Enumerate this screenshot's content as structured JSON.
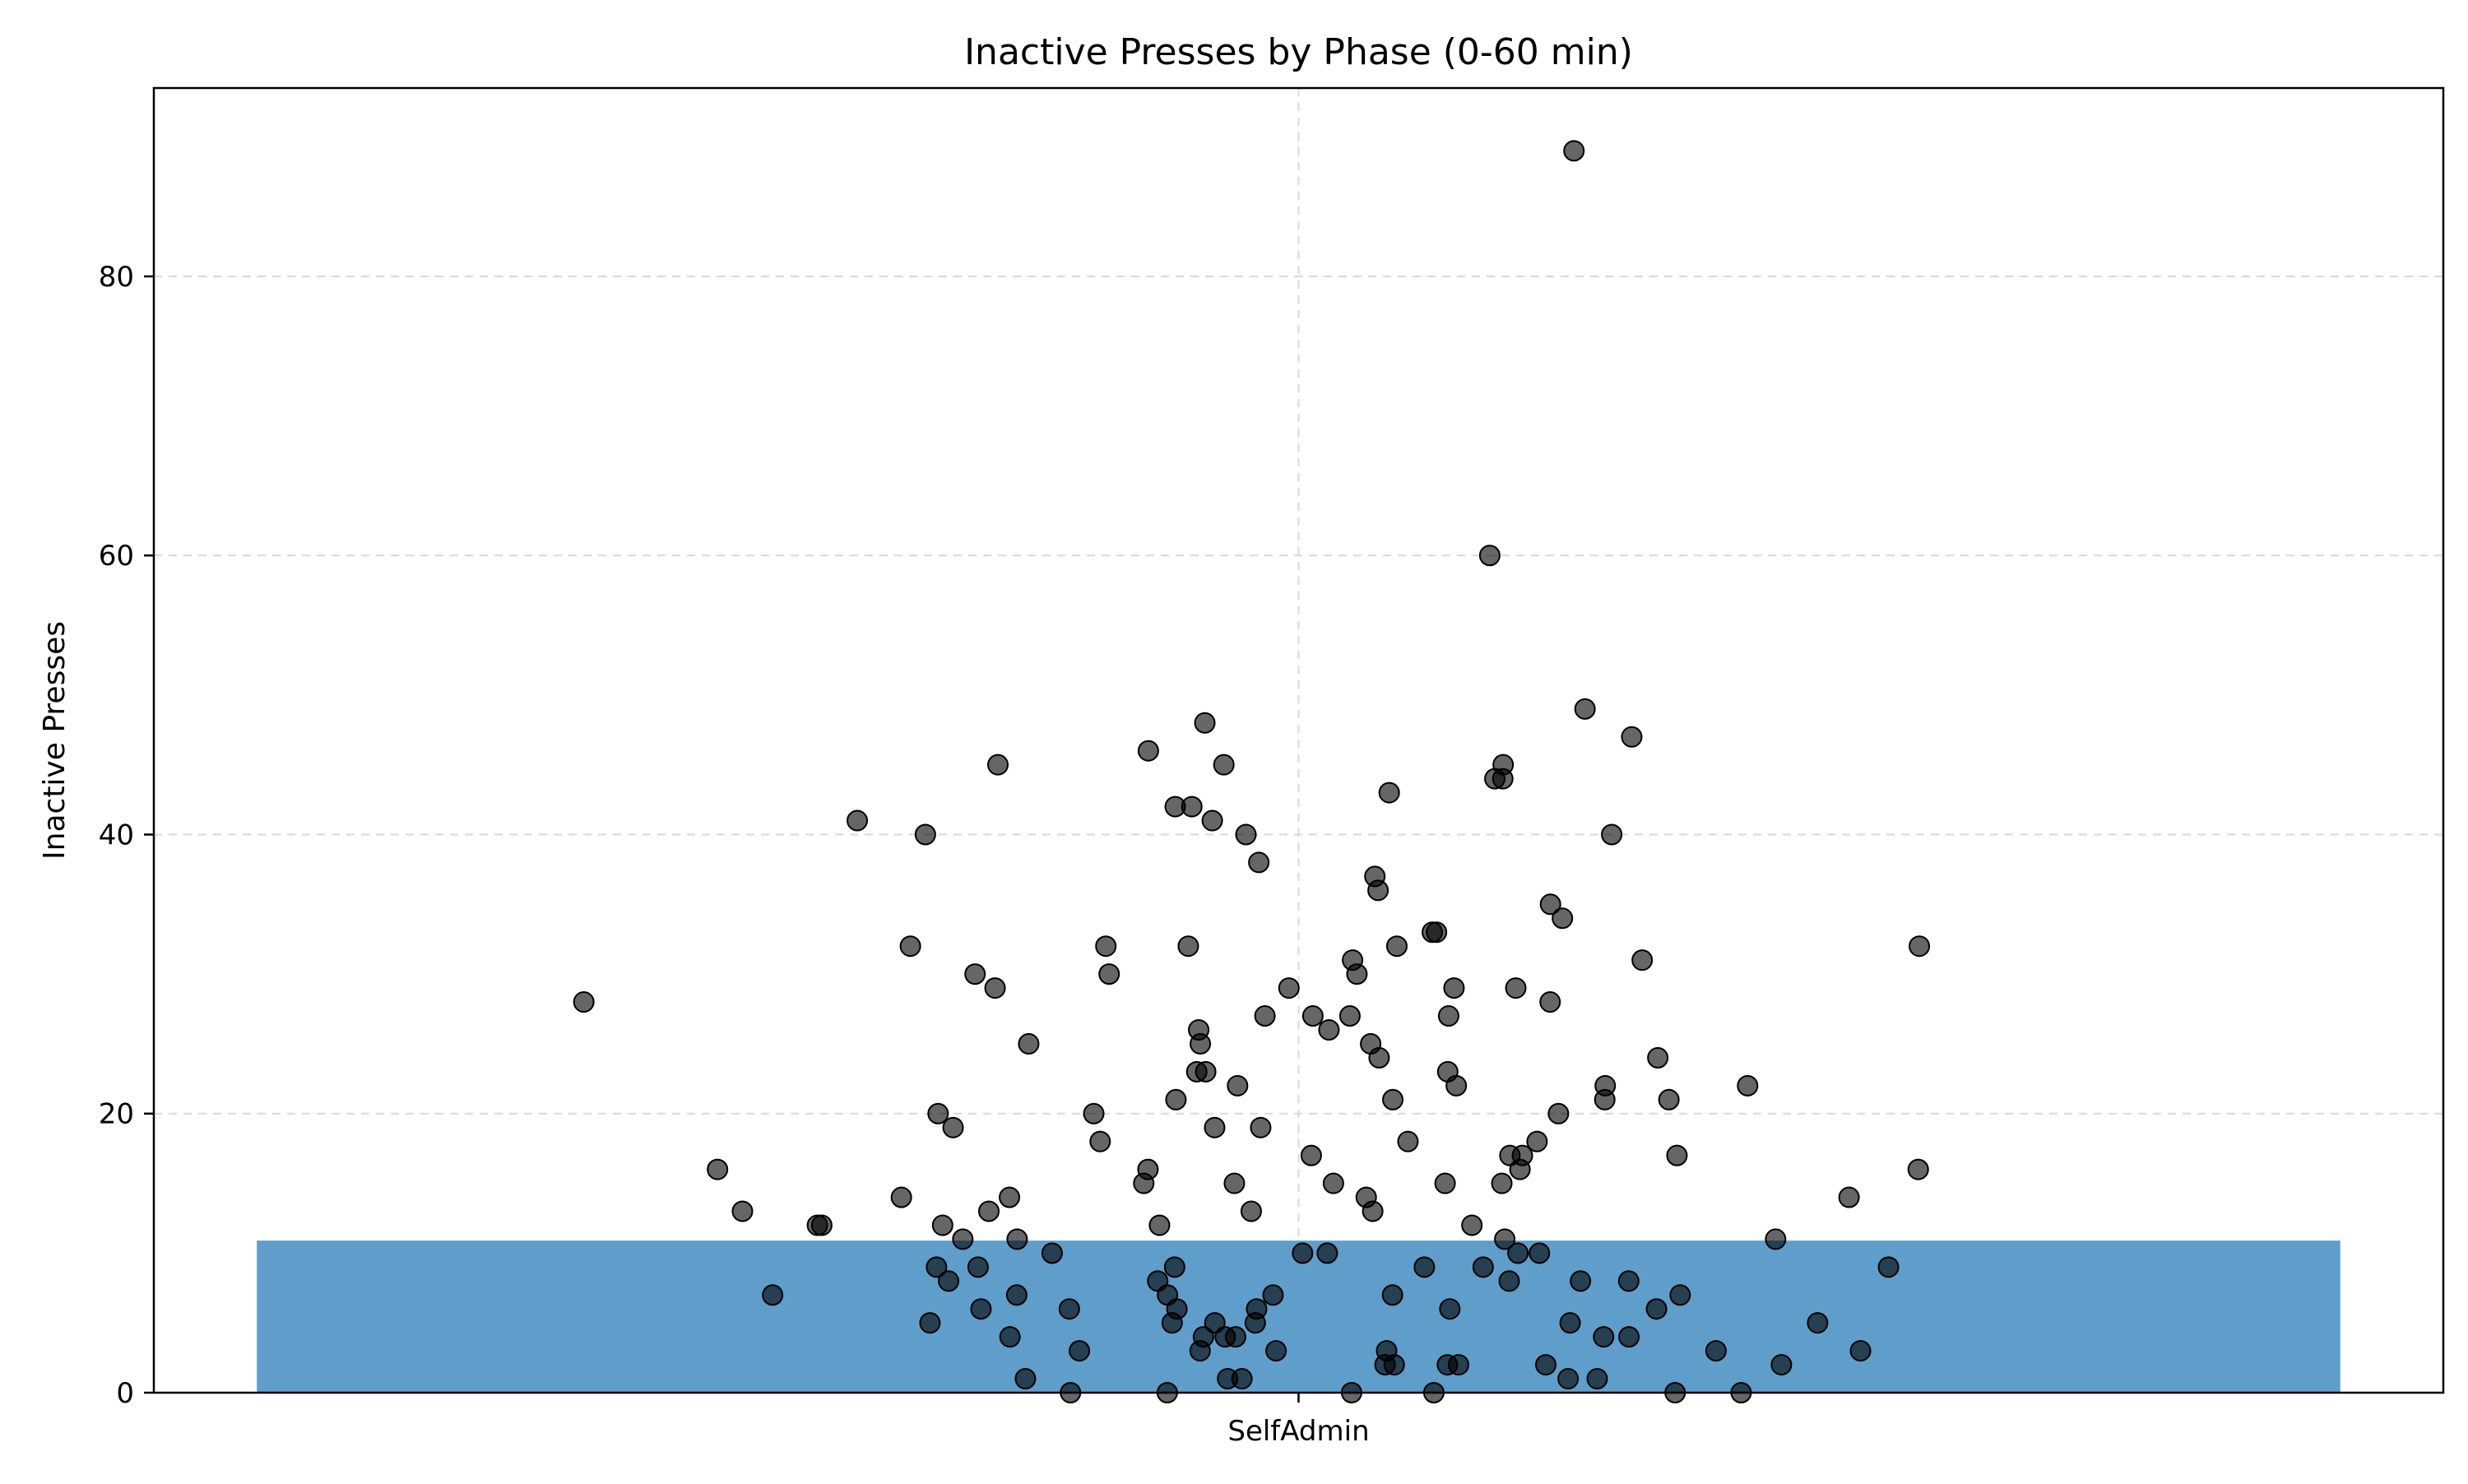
{
  "chart_data": {
    "type": "bar",
    "title": "Inactive Presses by Phase (0-60 min)",
    "xlabel": "",
    "ylabel": "Inactive Presses",
    "categories": [
      "SelfAdmin"
    ],
    "values": [
      10.9
    ],
    "ylim": [
      0,
      93.5
    ],
    "yticks": [
      0,
      20,
      40,
      60,
      80
    ],
    "grid": true,
    "bar_color": "#5f9ecb",
    "point_color": "#000000",
    "points_y": [
      89,
      60,
      49,
      48,
      47,
      46,
      45,
      45,
      45,
      44,
      44,
      43,
      42,
      42,
      41,
      41,
      40,
      40,
      40,
      38,
      37,
      36,
      35,
      34,
      33,
      33,
      32,
      32,
      32,
      32,
      32,
      31,
      31,
      30,
      30,
      30,
      29,
      29,
      29,
      29,
      28,
      28,
      27,
      27,
      27,
      27,
      26,
      26,
      25,
      25,
      25,
      24,
      24,
      23,
      23,
      23,
      22,
      22,
      22,
      22,
      21,
      21,
      21,
      21,
      20,
      20,
      20,
      19,
      19,
      19,
      18,
      18,
      18,
      17,
      17,
      17,
      17,
      16,
      16,
      16,
      16,
      15,
      15,
      15,
      15,
      15,
      14,
      14,
      14,
      14,
      13,
      13,
      13,
      13,
      12,
      12,
      12,
      12,
      12,
      11,
      11,
      11,
      11,
      10,
      10,
      10,
      10,
      10,
      9,
      9,
      9,
      9,
      9,
      9,
      8,
      8,
      8,
      8,
      8,
      7,
      7,
      7,
      7,
      7,
      7,
      6,
      6,
      6,
      6,
      6,
      6,
      5,
      5,
      5,
      5,
      5,
      5,
      4,
      4,
      4,
      4,
      4,
      4,
      3,
      3,
      3,
      3,
      3,
      3,
      2,
      2,
      2,
      2,
      2,
      2,
      1,
      1,
      1,
      1,
      1,
      0,
      0,
      0,
      0,
      0,
      0
    ]
  }
}
